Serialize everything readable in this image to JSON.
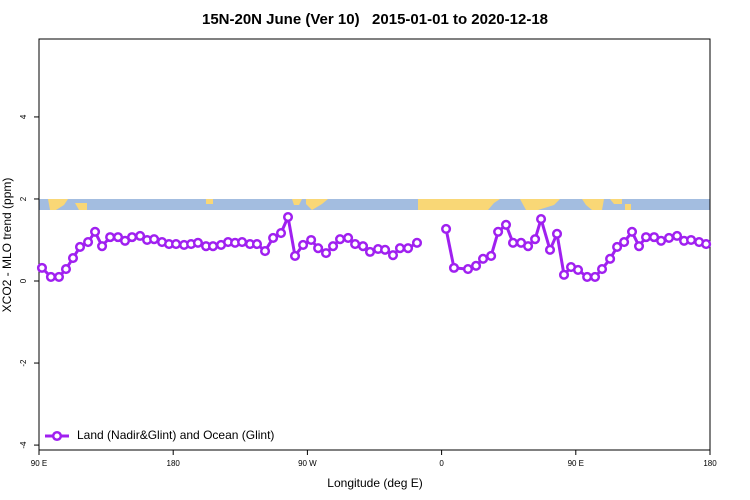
{
  "chart_data": {
    "type": "line",
    "title": "15N-20N June (Ver 10)   2015-01-01 to 2020-12-18",
    "xlabel": "Longitude (deg E)",
    "ylabel": "XCO2 - MLO trend (ppm)",
    "xlim": [
      90,
      540
    ],
    "ylim": [
      -4.12,
      5.9
    ],
    "xticks": [
      {
        "value": 90,
        "label": "90 E"
      },
      {
        "value": 180,
        "label": "180"
      },
      {
        "value": 270,
        "label": "90 W"
      },
      {
        "value": 360,
        "label": "0"
      },
      {
        "value": 450,
        "label": "90 E"
      },
      {
        "value": 540,
        "label": "180"
      }
    ],
    "yticks": [
      -4,
      -2,
      0,
      2,
      4
    ],
    "legend": "bottomleft",
    "x": [
      92.0,
      98.0,
      103.4,
      108.1,
      112.8,
      117.5,
      122.9,
      127.6,
      132.3,
      137.7,
      143.0,
      147.7,
      152.4,
      157.8,
      162.5,
      167.2,
      172.5,
      177.2,
      181.9,
      187.3,
      192.0,
      196.6,
      202.0,
      206.7,
      212.1,
      216.8,
      221.5,
      226.2,
      231.5,
      236.2,
      241.6,
      247.0,
      252.3,
      257.0,
      261.7,
      267.1,
      272.5,
      277.2,
      282.5,
      287.2,
      291.9,
      297.3,
      302.0,
      307.3,
      312.0,
      317.4,
      322.1,
      327.4,
      332.1,
      337.5,
      343.5,
      355.0,
      363.0,
      368.3,
      377.7,
      383.1,
      387.8,
      393.2,
      397.9,
      403.2,
      407.9,
      413.3,
      418.0,
      422.7,
      426.7,
      432.7,
      437.4,
      442.1,
      446.8,
      451.5,
      457.6,
      462.9,
      467.6,
      473.0,
      477.7,
      482.4,
      487.7,
      492.4,
      497.1,
      502.5,
      507.2,
      512.5,
      517.9,
      522.6,
      527.3,
      532.7,
      537.4
    ],
    "series": [
      {
        "name": "Land (Nadir&Glint) and Ocean (Glint)",
        "color": "#a020f0",
        "values": [
          0.32,
          0.1,
          0.1,
          0.29,
          0.56,
          0.83,
          0.95,
          1.2,
          0.85,
          1.07,
          1.07,
          0.98,
          1.07,
          1.1,
          1.0,
          1.02,
          0.95,
          0.9,
          0.9,
          0.88,
          0.9,
          0.93,
          0.85,
          0.85,
          0.88,
          0.95,
          0.93,
          0.95,
          0.9,
          0.9,
          0.73,
          1.05,
          1.17,
          1.56,
          0.61,
          0.88,
          1.0,
          0.8,
          0.68,
          0.85,
          1.02,
          1.05,
          0.9,
          0.85,
          0.71,
          0.78,
          0.76,
          0.63,
          0.8,
          0.8,
          0.93,
          null,
          1.27,
          0.32,
          0.29,
          0.37,
          0.54,
          0.61,
          1.2,
          1.37,
          0.93,
          0.93,
          0.85,
          1.02,
          1.51,
          0.76,
          1.15,
          0.15,
          0.34,
          0.27,
          0.1,
          0.1,
          0.29,
          0.54,
          0.83,
          0.95,
          1.2,
          0.85,
          1.07,
          1.07,
          0.98,
          1.05,
          1.1,
          0.98,
          1.0,
          0.95,
          0.9
        ]
      }
    ]
  }
}
